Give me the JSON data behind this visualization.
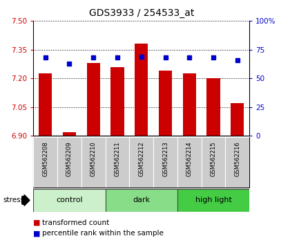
{
  "title": "GDS3933 / 254533_at",
  "samples": [
    "GSM562208",
    "GSM562209",
    "GSM562210",
    "GSM562211",
    "GSM562212",
    "GSM562213",
    "GSM562214",
    "GSM562215",
    "GSM562216"
  ],
  "red_values": [
    7.225,
    6.92,
    7.28,
    7.26,
    7.38,
    7.24,
    7.225,
    7.2,
    7.07
  ],
  "blue_values": [
    68,
    63,
    68,
    68,
    69,
    68,
    68,
    68,
    66
  ],
  "ylim_left": [
    6.9,
    7.5
  ],
  "ylim_right": [
    0,
    100
  ],
  "yticks_left": [
    6.9,
    7.05,
    7.2,
    7.35,
    7.5
  ],
  "yticks_right": [
    0,
    25,
    50,
    75,
    100
  ],
  "groups": [
    {
      "label": "control",
      "indices": [
        0,
        1,
        2
      ],
      "color": "#ccf0cc"
    },
    {
      "label": "dark",
      "indices": [
        3,
        4,
        5
      ],
      "color": "#88dd88"
    },
    {
      "label": "high light",
      "indices": [
        6,
        7,
        8
      ],
      "color": "#44cc44"
    }
  ],
  "bar_color": "#cc0000",
  "dot_color": "#0000cc",
  "bar_bottom": 6.9,
  "stress_label": "stress",
  "legend_red": "transformed count",
  "legend_blue": "percentile rank within the sample"
}
